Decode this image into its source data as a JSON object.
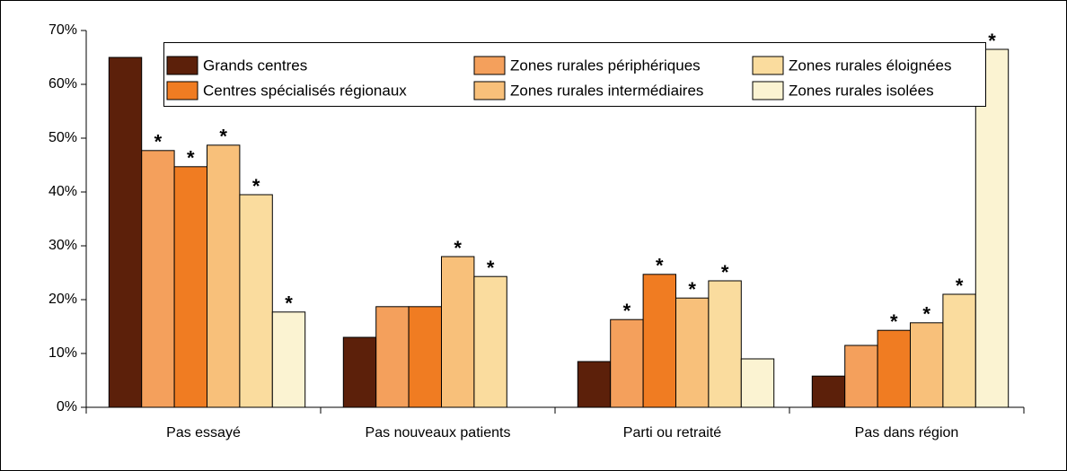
{
  "chart_data": {
    "type": "bar",
    "categories": [
      "Pas essayé",
      "Pas nouveaux patients",
      "Parti ou retraité",
      "Pas dans région"
    ],
    "series": [
      {
        "name": "Grands centres",
        "color": "#5c200a",
        "values": [
          65,
          13,
          8.5,
          5.8
        ],
        "labels": [
          null,
          null,
          null,
          null
        ]
      },
      {
        "name": "Zones rurales périphériques",
        "color": "#f4a05c",
        "values": [
          47.7,
          18.7,
          16.3,
          11.5
        ],
        "labels": [
          "*",
          null,
          "*",
          null
        ]
      },
      {
        "name": "Centres spécialisés régionaux",
        "color": "#f07c22",
        "values": [
          44.7,
          18.7,
          24.7,
          14.3
        ],
        "labels": [
          "*",
          null,
          "*",
          "*"
        ]
      },
      {
        "name": "Zones rurales intermédiaires",
        "color": "#f8c07a",
        "values": [
          48.7,
          28,
          20.3,
          15.7
        ],
        "labels": [
          "*",
          "*",
          "*",
          "*"
        ]
      },
      {
        "name": "Zones rurales éloignées",
        "color": "#fadc9e",
        "values": [
          39.5,
          24.3,
          23.5,
          21
        ],
        "labels": [
          "*",
          "*",
          "*",
          "*"
        ]
      },
      {
        "name": "Zones rurales isolées",
        "color": "#fbf3d2",
        "values": [
          17.7,
          null,
          9,
          66.5
        ],
        "labels": [
          "*",
          null,
          null,
          "*"
        ]
      }
    ],
    "ylim": [
      0,
      70
    ],
    "yticks": [
      {
        "value": 0,
        "label": "0%"
      },
      {
        "value": 10,
        "label": "10%"
      },
      {
        "value": 20,
        "label": "20%"
      },
      {
        "value": 30,
        "label": "30%"
      },
      {
        "value": 40,
        "label": "40%"
      },
      {
        "value": 50,
        "label": "50%"
      },
      {
        "value": 60,
        "label": "60%"
      },
      {
        "value": 70,
        "label": "70%"
      }
    ],
    "legend": "top"
  }
}
